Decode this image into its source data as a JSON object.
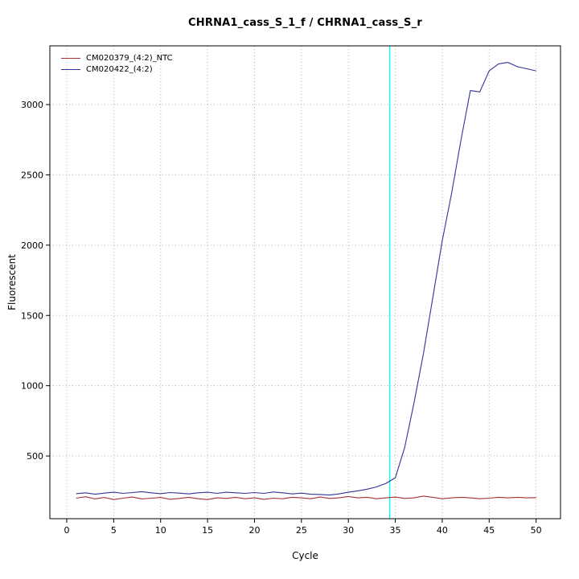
{
  "chart_data": {
    "type": "line",
    "title": "CHRNA1_cass_S_1_f / CHRNA1_cass_S_r",
    "xlabel": "Cycle",
    "ylabel": "Fluorescent",
    "xlim": [
      -1.8,
      52.6
    ],
    "ylim": [
      54,
      3418
    ],
    "x_ticks": [
      0,
      5,
      10,
      15,
      20,
      25,
      30,
      35,
      40,
      45,
      50
    ],
    "y_ticks": [
      500,
      1000,
      1500,
      2000,
      2500,
      3000
    ],
    "grid": "dotted",
    "legend_position": "top-left-inside",
    "colors": {
      "grid": "#b3b3b3",
      "axis": "#000000",
      "background": "#ffffff"
    },
    "threshold_line": {
      "x": 34.4,
      "color": "#00ffff"
    },
    "x": [
      1,
      2,
      3,
      4,
      5,
      6,
      7,
      8,
      9,
      10,
      11,
      12,
      13,
      14,
      15,
      16,
      17,
      18,
      19,
      20,
      21,
      22,
      23,
      24,
      25,
      26,
      27,
      28,
      29,
      30,
      31,
      32,
      33,
      34,
      35,
      36,
      37,
      38,
      39,
      40,
      41,
      42,
      43,
      44,
      45,
      46,
      47,
      48,
      49,
      50
    ],
    "series": [
      {
        "name": "CM020379_(4:2)_NTC",
        "color": "#a63232",
        "values": [
          200,
          210,
          195,
          205,
          190,
          200,
          208,
          195,
          200,
          205,
          192,
          198,
          206,
          196,
          190,
          202,
          198,
          206,
          196,
          202,
          192,
          200,
          196,
          206,
          202,
          196,
          208,
          198,
          202,
          212,
          202,
          206,
          196,
          202,
          208,
          198,
          202,
          215,
          206,
          196,
          202,
          206,
          202,
          196,
          200,
          206,
          202,
          206,
          202,
          204
        ]
      },
      {
        "name": "CM020422_(4:2)",
        "color": "#333399",
        "values": [
          232,
          238,
          228,
          236,
          242,
          234,
          240,
          246,
          238,
          232,
          240,
          236,
          230,
          238,
          242,
          234,
          242,
          238,
          234,
          240,
          234,
          244,
          238,
          230,
          236,
          228,
          226,
          222,
          230,
          242,
          252,
          264,
          280,
          305,
          345,
          560,
          880,
          1230,
          1630,
          2030,
          2370,
          2750,
          3100,
          3090,
          3240,
          3290,
          3300,
          3270,
          3255,
          3240
        ]
      }
    ]
  }
}
